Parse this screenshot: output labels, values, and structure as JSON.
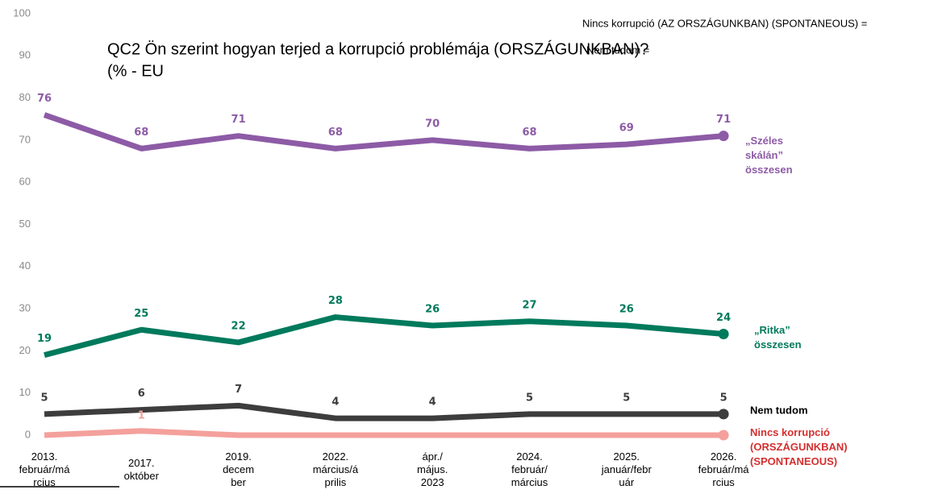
{
  "chart_data": {
    "type": "line",
    "title": "QC2 Ön szerint hogyan terjed a korrupció problémája (ORSZÁGUNKBAN)?",
    "subtitle": "(% - EU",
    "annotations": [
      "Nincs korrupció (AZ ORSZÁGUNKBAN) (SPONTANEOUS)  =",
      "Nem tudom ="
    ],
    "categories": [
      "2013.\nfebruár/má\nrcius",
      "2017.\noktóber",
      "2019.\ndecem\nber",
      "2022.\nmárcius/á\nprilis",
      "ápr./\nmájus.\n2023",
      "2024.\nfebruár/\nmárcius",
      "2025.\njanuár/febr\nuár",
      "2026.\nfebruár/má\nrcius"
    ],
    "series": [
      {
        "name": "„Széles\nskálán”\nösszesen",
        "color": "#8d5ba6",
        "label_color": "#8d5ba6",
        "values": [
          76,
          68,
          71,
          68,
          70,
          68,
          69,
          71
        ]
      },
      {
        "name": "„Ritka”\nösszesen",
        "color": "#007a5c",
        "label_color": "#007a5c",
        "values": [
          19,
          25,
          22,
          28,
          26,
          27,
          26,
          24
        ]
      },
      {
        "name": "Nem tudom",
        "color": "#3d3d3d",
        "label_color": "#000000",
        "values": [
          5,
          6,
          7,
          4,
          4,
          5,
          5,
          5
        ]
      },
      {
        "name": "Nincs korrupció\n(ORSZÁGUNKBAN)\n(SPONTANEOUS)",
        "color": "#f4a09c",
        "label_color": "#d42f2f",
        "values": [
          0,
          1,
          0,
          0,
          0,
          0,
          0,
          0
        ],
        "value_labels": [
          null,
          "1",
          null,
          null,
          null,
          null,
          null,
          null
        ]
      }
    ],
    "ylim": [
      0,
      100
    ],
    "yticks": [
      0,
      10,
      20,
      30,
      40,
      50,
      60,
      70,
      80,
      90,
      100
    ],
    "grid": false
  }
}
